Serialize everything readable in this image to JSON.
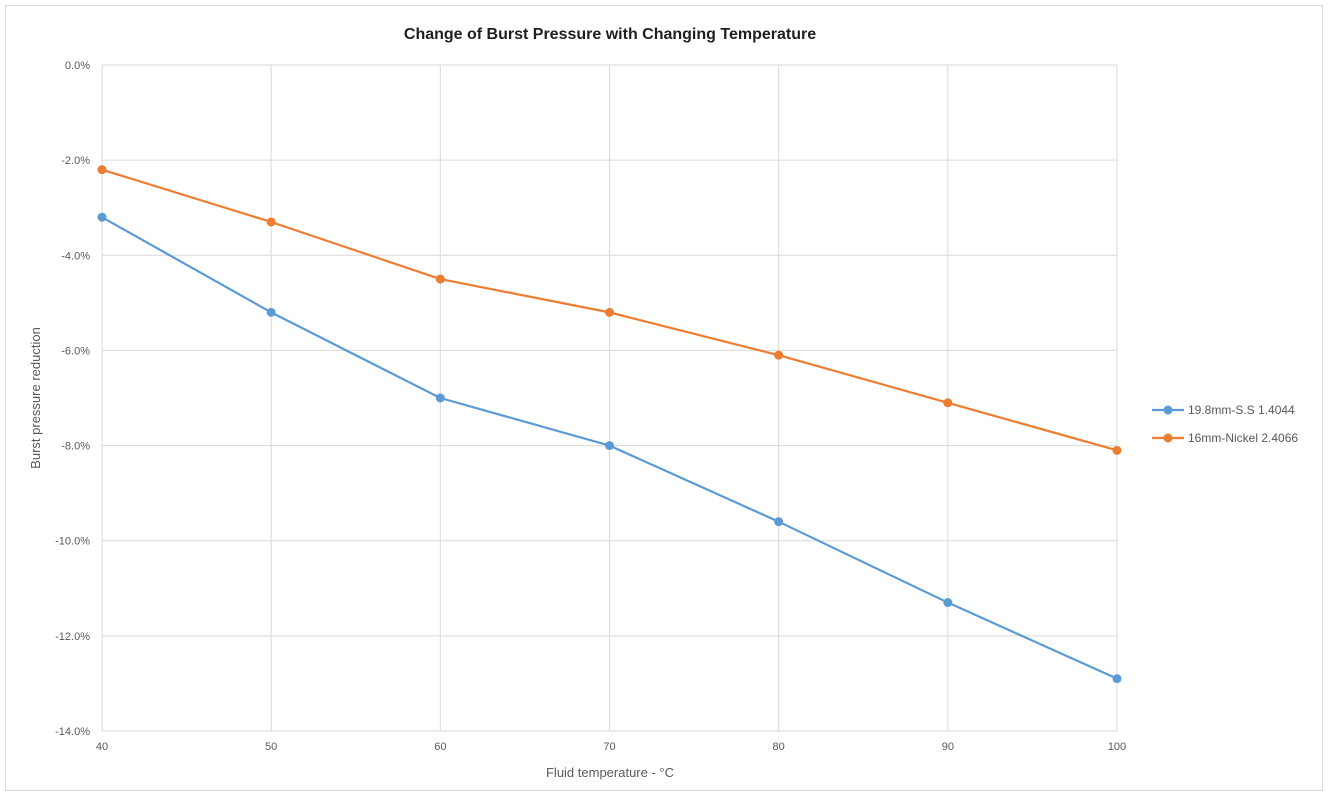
{
  "chart_data": {
    "type": "line",
    "title": "Change of Burst Pressure with Changing Temperature",
    "xlabel": "Fluid temperature - °C",
    "ylabel": "Burst pressure reduction",
    "x": [
      40,
      50,
      60,
      70,
      80,
      90,
      100
    ],
    "x_tick_labels": [
      "40",
      "50",
      "60",
      "70",
      "80",
      "90",
      "100"
    ],
    "xlim": [
      40,
      100
    ],
    "ylim": [
      -14,
      0
    ],
    "y_ticks": [
      0,
      -2,
      -4,
      -6,
      -8,
      -10,
      -12,
      -14
    ],
    "y_tick_labels": [
      "0.0%",
      "-2.0%",
      "-4.0%",
      "-6.0%",
      "-8.0%",
      "-10.0%",
      "-12.0%",
      "-14.0%"
    ],
    "y_unit": "%",
    "grid": true,
    "legend_position": "right",
    "series": [
      {
        "name": "19.8mm-S.S 1.4044",
        "color": "#5b9bd5",
        "values": [
          -3.2,
          -5.2,
          -7.0,
          -8.0,
          -9.6,
          -11.3,
          -12.9
        ]
      },
      {
        "name": "16mm-Nickel 2.4066",
        "color": "#ed7d31",
        "values": [
          -2.2,
          -3.3,
          -4.5,
          -5.2,
          -6.1,
          -7.1,
          -8.1
        ]
      }
    ]
  }
}
